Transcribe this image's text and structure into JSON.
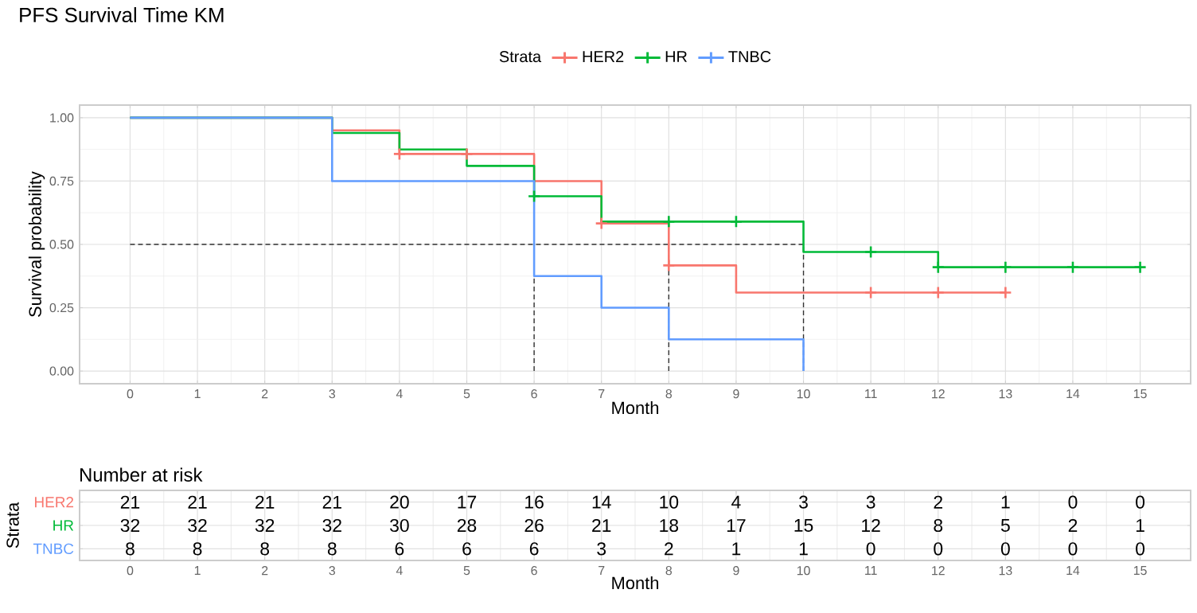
{
  "chart_data": [
    {
      "type": "step",
      "title": "PFS Survival Time KM",
      "xlabel": "Month",
      "ylabel": "Survival probability",
      "legend_title": "Strata",
      "series": [
        {
          "name": "HER2",
          "color": "#f8766d",
          "x": [
            0,
            3,
            4,
            6,
            7,
            8,
            9,
            13
          ],
          "values": [
            1,
            0.95,
            0.857,
            0.75,
            0.583,
            0.417,
            0.31,
            0.31
          ]
        },
        {
          "name": "HR",
          "color": "#00ba38",
          "x": [
            0,
            3,
            4,
            5,
            6,
            7,
            10,
            12,
            15
          ],
          "values": [
            1,
            0.94,
            0.875,
            0.81,
            0.69,
            0.59,
            0.47,
            0.41,
            0.41
          ]
        },
        {
          "name": "TNBC",
          "color": "#619cff",
          "x": [
            0,
            3,
            6,
            7,
            8,
            10
          ],
          "values": [
            1,
            0.75,
            0.375,
            0.25,
            0.125,
            0
          ]
        },
        {
          "type": "scatter",
          "marker": "cross",
          "color": "#f8766d",
          "x": [
            4,
            5,
            7,
            8,
            11,
            12,
            13
          ],
          "values": [
            0.857,
            0.857,
            0.583,
            0.417,
            0.31,
            0.31,
            0.31
          ]
        },
        {
          "type": "scatter",
          "marker": "cross",
          "color": "#00ba38",
          "x": [
            6,
            8,
            9,
            11,
            12,
            13,
            14,
            15
          ],
          "values": [
            0.69,
            0.59,
            0.59,
            0.47,
            0.41,
            0.41,
            0.41,
            0.41
          ]
        }
      ],
      "xlim": [
        -0.75,
        15.75
      ],
      "xticks": [
        0,
        1,
        2,
        3,
        4,
        5,
        6,
        7,
        8,
        9,
        10,
        11,
        12,
        13,
        14,
        15
      ],
      "ylim": [
        -0.05,
        1.05
      ],
      "yticks": [
        {
          "value": 0,
          "label": "0.00"
        },
        {
          "value": 0.25,
          "label": "0.25"
        },
        {
          "value": 0.5,
          "label": "0.50"
        },
        {
          "value": 0.75,
          "label": "0.75"
        },
        {
          "value": 1,
          "label": "1.00"
        }
      ],
      "ref_lines": [
        {
          "axis": "y",
          "value": 0.5,
          "line_style": "dashed",
          "color": "#333333"
        },
        {
          "axis": "x",
          "value": 6,
          "line_style": "dashed",
          "color": "#333333"
        },
        {
          "axis": "x",
          "value": 8,
          "line_style": "dashed",
          "color": "#333333"
        },
        {
          "axis": "x",
          "value": 10,
          "line_style": "dashed",
          "color": "#333333"
        }
      ],
      "grid": true,
      "legend": "top",
      "marker": "none"
    },
    {
      "type": "heatmap",
      "title": "Number at risk",
      "xlabel": "Month",
      "ylabel": "Strata",
      "categories": [
        "0",
        "1",
        "2",
        "3",
        "4",
        "5",
        "6",
        "7",
        "8",
        "9",
        "10",
        "11",
        "12",
        "13",
        "14",
        "15"
      ],
      "y_categories": [
        "HER2",
        "HR",
        "TNBC"
      ],
      "cells": [
        [
          21,
          21,
          21,
          21,
          20,
          17,
          16,
          14,
          10,
          4,
          3,
          3,
          2,
          1,
          0,
          0
        ],
        [
          32,
          32,
          32,
          32,
          30,
          28,
          26,
          21,
          18,
          17,
          15,
          12,
          8,
          5,
          2,
          1
        ],
        [
          8,
          8,
          8,
          8,
          6,
          6,
          6,
          3,
          2,
          1,
          1,
          0,
          0,
          0,
          0,
          0
        ]
      ],
      "data_labels": true,
      "grid": true
    }
  ]
}
